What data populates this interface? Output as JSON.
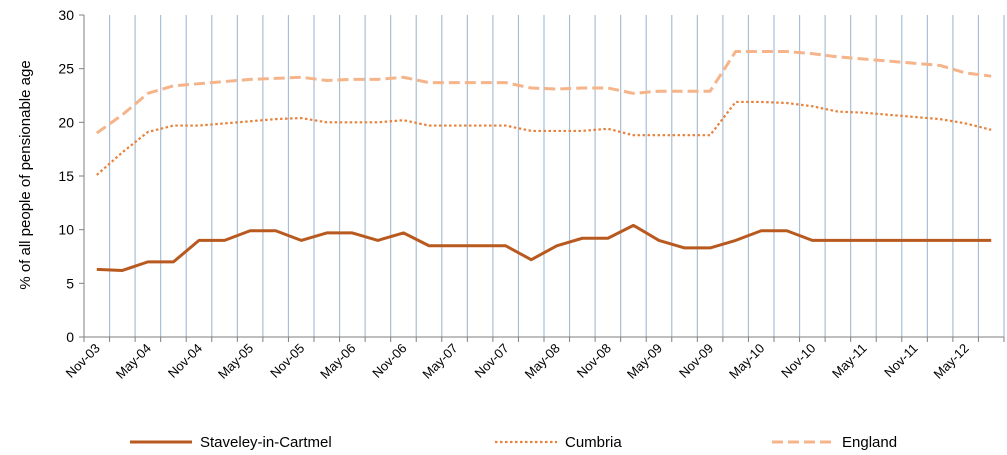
{
  "chart_data": {
    "type": "line",
    "ylabel": "% of all people of pensionable age",
    "ylim": [
      0,
      30
    ],
    "yticks": [
      0,
      5,
      10,
      15,
      20,
      25,
      30
    ],
    "grid": "vertical",
    "legend_position": "bottom",
    "x": [
      "Nov-03",
      "Feb-04",
      "May-04",
      "Aug-04",
      "Nov-04",
      "Feb-05",
      "May-05",
      "Aug-05",
      "Nov-05",
      "Feb-06",
      "May-06",
      "Aug-06",
      "Nov-06",
      "Feb-07",
      "May-07",
      "Aug-07",
      "Nov-07",
      "Feb-08",
      "May-08",
      "Aug-08",
      "Nov-08",
      "Feb-09",
      "May-09",
      "Aug-09",
      "Nov-09",
      "Feb-10",
      "May-10",
      "Aug-10",
      "Nov-10",
      "Feb-11",
      "May-11",
      "Aug-11",
      "Nov-11",
      "Feb-12",
      "May-12",
      "Aug-12"
    ],
    "xtick_labels": [
      "Nov-03",
      "May-04",
      "Nov-04",
      "May-05",
      "Nov-05",
      "May-06",
      "Nov-06",
      "May-07",
      "Nov-07",
      "May-08",
      "Nov-08",
      "May-09",
      "Nov-09",
      "May-10",
      "Nov-10",
      "May-11",
      "Nov-11",
      "May-12"
    ],
    "series": [
      {
        "name": "Staveley-in-Cartmel",
        "color": "#b85a1f",
        "style": "solid",
        "values": [
          6.3,
          6.2,
          7.0,
          7.0,
          9.0,
          9.0,
          9.9,
          9.9,
          9.0,
          9.7,
          9.7,
          9.0,
          9.7,
          8.5,
          8.5,
          8.5,
          8.5,
          7.2,
          8.5,
          9.2,
          9.2,
          10.4,
          9.0,
          8.3,
          8.3,
          9.0,
          9.9,
          9.9,
          9.0,
          9.0,
          9.0,
          9.0,
          9.0,
          9.0,
          9.0,
          9.0
        ]
      },
      {
        "name": "Cumbria",
        "color": "#e8813a",
        "style": "dotted",
        "values": [
          15.1,
          17.2,
          19.1,
          19.7,
          19.7,
          19.9,
          20.1,
          20.3,
          20.4,
          20.0,
          20.0,
          20.0,
          20.2,
          19.7,
          19.7,
          19.7,
          19.7,
          19.2,
          19.2,
          19.2,
          19.4,
          18.8,
          18.8,
          18.8,
          18.8,
          21.9,
          21.9,
          21.8,
          21.5,
          21.0,
          20.9,
          20.7,
          20.5,
          20.3,
          19.9,
          19.3
        ]
      },
      {
        "name": "England",
        "color": "#f5b48a",
        "style": "dashed",
        "values": [
          19.0,
          20.7,
          22.7,
          23.4,
          23.6,
          23.8,
          24.0,
          24.1,
          24.2,
          23.9,
          24.0,
          24.0,
          24.2,
          23.7,
          23.7,
          23.7,
          23.7,
          23.2,
          23.1,
          23.2,
          23.2,
          22.7,
          22.9,
          22.9,
          22.9,
          26.6,
          26.6,
          26.6,
          26.4,
          26.1,
          25.9,
          25.7,
          25.5,
          25.3,
          24.6,
          24.3
        ]
      }
    ]
  }
}
